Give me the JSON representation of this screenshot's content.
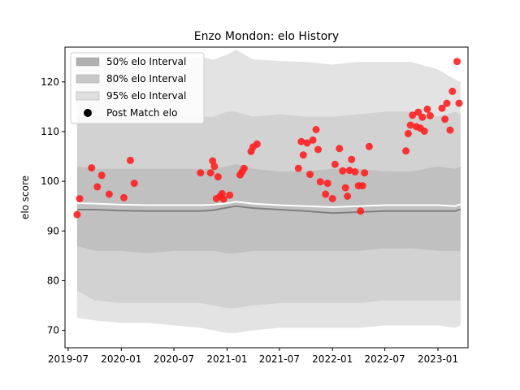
{
  "chart_data": {
    "type": "scatter",
    "title": "Enzo Mondon: elo History",
    "xlabel": "",
    "ylabel": "elo score",
    "xlim": [
      "2019-06-20",
      "2023-04-15"
    ],
    "ylim": [
      66.5,
      127
    ],
    "x_ticks": [
      {
        "date": "2019-07-01",
        "label": "2019-07"
      },
      {
        "date": "2020-01-01",
        "label": "2020-01"
      },
      {
        "date": "2020-07-01",
        "label": "2020-07"
      },
      {
        "date": "2021-01-01",
        "label": "2021-01"
      },
      {
        "date": "2021-07-01",
        "label": "2021-07"
      },
      {
        "date": "2022-01-01",
        "label": "2022-01"
      },
      {
        "date": "2022-07-01",
        "label": "2022-07"
      },
      {
        "date": "2023-01-01",
        "label": "2023-01"
      }
    ],
    "y_ticks": [
      70,
      80,
      90,
      100,
      110,
      120
    ],
    "legend": {
      "placement": "top-left",
      "entries": [
        {
          "label": "50% elo Interval",
          "color": "#b0b0b0"
        },
        {
          "label": "80% elo Interval",
          "color": "#c8c8c8"
        },
        {
          "label": "95% elo Interval",
          "color": "#e0e0e0"
        },
        {
          "label": "Post Match elo",
          "color": "#000000"
        }
      ]
    },
    "colors": {
      "point": "#ff2020",
      "band95": "#e3e3e3",
      "band80": "#d2d2d2",
      "band50": "#c0c0c0",
      "median": "#808080",
      "mean": "#ffffff"
    },
    "bands": {
      "x": [
        "2019-08-01",
        "2019-10-01",
        "2020-01-01",
        "2020-04-01",
        "2020-07-01",
        "2020-10-01",
        "2020-11-15",
        "2021-01-01",
        "2021-02-01",
        "2021-04-01",
        "2021-07-01",
        "2021-10-01",
        "2022-01-01",
        "2022-04-01",
        "2022-07-01",
        "2022-10-01",
        "2023-01-01",
        "2023-03-01",
        "2023-03-20"
      ],
      "band95_upper": [
        123,
        124,
        123.8,
        124,
        124.5,
        125,
        124.5,
        125.5,
        126.5,
        124.5,
        124.2,
        124,
        123.5,
        124,
        124,
        124,
        122.5,
        120.5,
        120
      ],
      "band95_lower": [
        72.5,
        72,
        71.5,
        71.5,
        71,
        70.5,
        70,
        69.5,
        69.5,
        70,
        70.5,
        70.5,
        70.5,
        70.5,
        71,
        71,
        71,
        70.5,
        71
      ],
      "band80_upper": [
        113,
        113,
        113.5,
        113,
        113,
        113,
        113,
        114,
        114,
        113,
        113.5,
        113,
        113,
        113.5,
        114,
        114,
        113,
        114,
        113.5
      ],
      "band80_lower": [
        78,
        76,
        75.5,
        75.5,
        75.5,
        75.5,
        75,
        74.5,
        74.5,
        75,
        75.5,
        75.5,
        75.5,
        75.5,
        76,
        76,
        76,
        76,
        76
      ],
      "band50_upper": [
        103,
        102.5,
        102.5,
        102.5,
        102.5,
        102.5,
        102.5,
        103,
        103.5,
        102.5,
        102,
        102,
        102.5,
        102.5,
        102,
        102,
        103,
        102.5,
        103
      ],
      "band50_lower": [
        87,
        86,
        86,
        85.5,
        86,
        86,
        86,
        85.5,
        85.5,
        86,
        86,
        86,
        86,
        86,
        86.5,
        86.5,
        86,
        86,
        86
      ],
      "median": [
        94.3,
        94.3,
        94.1,
        94,
        94,
        94,
        94.2,
        94.7,
        95,
        94.6,
        94.3,
        94,
        93.6,
        93.8,
        94,
        94,
        94,
        94,
        94.4
      ],
      "mean": [
        95.6,
        95.5,
        95.3,
        95.2,
        95.2,
        95.2,
        95.3,
        95.6,
        95.9,
        95.5,
        95.2,
        95,
        94.8,
        95,
        95.2,
        95.2,
        95.2,
        95,
        95.4
      ]
    },
    "points": [
      {
        "x": "2019-08-01",
        "y": 93.3
      },
      {
        "x": "2019-08-10",
        "y": 96.5
      },
      {
        "x": "2019-09-20",
        "y": 102.7
      },
      {
        "x": "2019-10-10",
        "y": 98.9
      },
      {
        "x": "2019-10-25",
        "y": 101.2
      },
      {
        "x": "2019-11-20",
        "y": 97.4
      },
      {
        "x": "2020-01-10",
        "y": 96.7
      },
      {
        "x": "2020-02-01",
        "y": 104.2
      },
      {
        "x": "2020-02-15",
        "y": 99.6
      },
      {
        "x": "2020-10-01",
        "y": 101.7
      },
      {
        "x": "2020-11-05",
        "y": 101.7
      },
      {
        "x": "2020-11-12",
        "y": 104.1
      },
      {
        "x": "2020-11-18",
        "y": 103.0
      },
      {
        "x": "2020-11-25",
        "y": 96.5
      },
      {
        "x": "2020-12-01",
        "y": 100.9
      },
      {
        "x": "2020-12-08",
        "y": 97.0
      },
      {
        "x": "2020-12-15",
        "y": 97.5
      },
      {
        "x": "2020-12-20",
        "y": 96.4
      },
      {
        "x": "2021-01-10",
        "y": 97.2
      },
      {
        "x": "2021-02-15",
        "y": 101.3
      },
      {
        "x": "2021-02-22",
        "y": 101.9
      },
      {
        "x": "2021-03-01",
        "y": 102.6
      },
      {
        "x": "2021-03-25",
        "y": 106.0
      },
      {
        "x": "2021-04-01",
        "y": 106.9
      },
      {
        "x": "2021-04-15",
        "y": 107.5
      },
      {
        "x": "2021-09-05",
        "y": 102.6
      },
      {
        "x": "2021-09-15",
        "y": 108.0
      },
      {
        "x": "2021-09-22",
        "y": 105.3
      },
      {
        "x": "2021-10-05",
        "y": 107.7
      },
      {
        "x": "2021-10-15",
        "y": 101.4
      },
      {
        "x": "2021-10-25",
        "y": 108.3
      },
      {
        "x": "2021-11-05",
        "y": 110.4
      },
      {
        "x": "2021-11-12",
        "y": 106.4
      },
      {
        "x": "2021-11-20",
        "y": 99.9
      },
      {
        "x": "2021-12-08",
        "y": 97.4
      },
      {
        "x": "2021-12-15",
        "y": 99.6
      },
      {
        "x": "2022-01-01",
        "y": 96.5
      },
      {
        "x": "2022-01-10",
        "y": 103.4
      },
      {
        "x": "2022-01-25",
        "y": 106.6
      },
      {
        "x": "2022-02-05",
        "y": 102.1
      },
      {
        "x": "2022-02-15",
        "y": 98.7
      },
      {
        "x": "2022-02-22",
        "y": 97.0
      },
      {
        "x": "2022-03-01",
        "y": 102.2
      },
      {
        "x": "2022-03-08",
        "y": 104.4
      },
      {
        "x": "2022-03-20",
        "y": 101.9
      },
      {
        "x": "2022-04-01",
        "y": 99.1
      },
      {
        "x": "2022-04-08",
        "y": 94.0
      },
      {
        "x": "2022-04-15",
        "y": 99.1
      },
      {
        "x": "2022-04-22",
        "y": 101.7
      },
      {
        "x": "2022-05-08",
        "y": 107.0
      },
      {
        "x": "2022-09-12",
        "y": 106.1
      },
      {
        "x": "2022-09-20",
        "y": 109.6
      },
      {
        "x": "2022-09-28",
        "y": 111.3
      },
      {
        "x": "2022-10-05",
        "y": 113.3
      },
      {
        "x": "2022-10-18",
        "y": 111.0
      },
      {
        "x": "2022-10-25",
        "y": 113.9
      },
      {
        "x": "2022-11-01",
        "y": 110.7
      },
      {
        "x": "2022-11-08",
        "y": 112.9
      },
      {
        "x": "2022-11-15",
        "y": 110.1
      },
      {
        "x": "2022-11-25",
        "y": 114.5
      },
      {
        "x": "2022-12-05",
        "y": 113.2
      },
      {
        "x": "2023-01-15",
        "y": 114.7
      },
      {
        "x": "2023-01-25",
        "y": 112.5
      },
      {
        "x": "2023-02-01",
        "y": 115.7
      },
      {
        "x": "2023-02-12",
        "y": 110.3
      },
      {
        "x": "2023-02-20",
        "y": 118.1
      },
      {
        "x": "2023-03-08",
        "y": 124.1
      },
      {
        "x": "2023-03-15",
        "y": 115.7
      }
    ]
  }
}
